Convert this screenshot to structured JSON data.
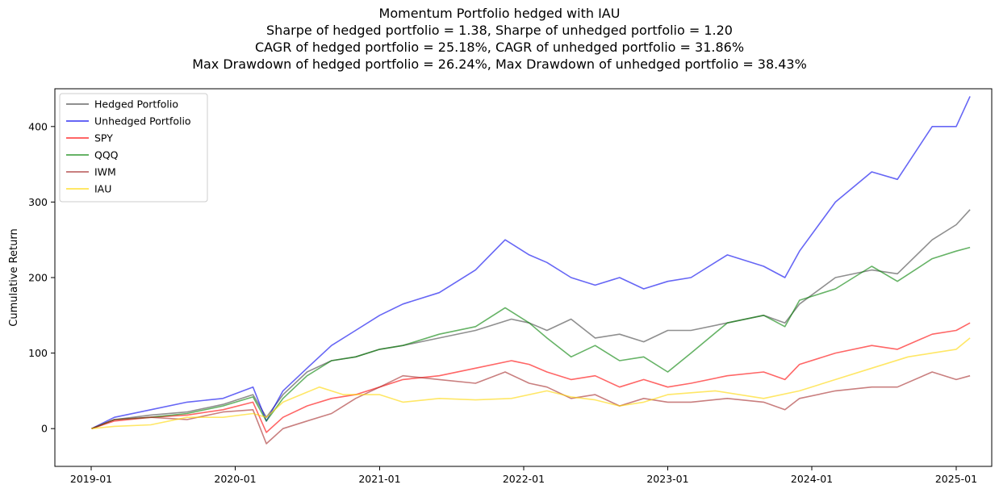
{
  "chart_data": {
    "type": "line",
    "title": "Momentum Portfolio hedged with IAU",
    "subtitle_lines": [
      "Sharpe of hedged portfolio = 1.38, Sharpe of unhedged portfolio = 1.20",
      "CAGR of hedged portfolio = 25.18%, CAGR of unhedged portfolio = 31.86%",
      "Max Drawdown of hedged portfolio = 26.24%, Max Drawdown of unhedged portfolio = 38.43%"
    ],
    "xlabel": "",
    "ylabel": "Cumulative Return",
    "xlim": [
      "2018-10-01",
      "2025-04-01"
    ],
    "ylim": [
      -50,
      450
    ],
    "x_ticks": [
      "2019-01",
      "2020-01",
      "2021-01",
      "2022-01",
      "2023-01",
      "2024-01",
      "2025-01"
    ],
    "y_ticks": [
      0,
      100,
      200,
      300,
      400
    ],
    "grid": false,
    "legend_position": "upper-left",
    "series": [
      {
        "name": "Hedged Portfolio",
        "color": "#444444",
        "points": [
          [
            "2019-01-02",
            0
          ],
          [
            "2019-03-01",
            12
          ],
          [
            "2019-06-01",
            18
          ],
          [
            "2019-09-01",
            22
          ],
          [
            "2019-12-01",
            32
          ],
          [
            "2020-02-15",
            45
          ],
          [
            "2020-03-20",
            15
          ],
          [
            "2020-05-01",
            45
          ],
          [
            "2020-07-01",
            75
          ],
          [
            "2020-09-01",
            90
          ],
          [
            "2020-11-01",
            95
          ],
          [
            "2021-01-01",
            105
          ],
          [
            "2021-03-01",
            110
          ],
          [
            "2021-06-01",
            120
          ],
          [
            "2021-09-01",
            130
          ],
          [
            "2021-12-01",
            145
          ],
          [
            "2022-01-15",
            140
          ],
          [
            "2022-03-01",
            130
          ],
          [
            "2022-05-01",
            145
          ],
          [
            "2022-07-01",
            120
          ],
          [
            "2022-09-01",
            125
          ],
          [
            "2022-11-01",
            115
          ],
          [
            "2023-01-01",
            130
          ],
          [
            "2023-03-01",
            130
          ],
          [
            "2023-06-01",
            140
          ],
          [
            "2023-09-01",
            150
          ],
          [
            "2023-10-25",
            140
          ],
          [
            "2023-12-01",
            165
          ],
          [
            "2024-03-01",
            200
          ],
          [
            "2024-06-01",
            210
          ],
          [
            "2024-08-05",
            205
          ],
          [
            "2024-11-01",
            250
          ],
          [
            "2025-01-01",
            270
          ],
          [
            "2025-02-05",
            290
          ]
        ]
      },
      {
        "name": "Unhedged Portfolio",
        "color": "#0000ee",
        "points": [
          [
            "2019-01-02",
            0
          ],
          [
            "2019-03-01",
            15
          ],
          [
            "2019-06-01",
            25
          ],
          [
            "2019-09-01",
            35
          ],
          [
            "2019-12-01",
            40
          ],
          [
            "2020-02-15",
            55
          ],
          [
            "2020-03-20",
            10
          ],
          [
            "2020-05-01",
            50
          ],
          [
            "2020-07-01",
            80
          ],
          [
            "2020-09-01",
            110
          ],
          [
            "2020-11-01",
            130
          ],
          [
            "2021-01-01",
            150
          ],
          [
            "2021-03-01",
            165
          ],
          [
            "2021-06-01",
            180
          ],
          [
            "2021-09-01",
            210
          ],
          [
            "2021-11-15",
            250
          ],
          [
            "2022-01-15",
            230
          ],
          [
            "2022-03-01",
            220
          ],
          [
            "2022-05-01",
            200
          ],
          [
            "2022-07-01",
            190
          ],
          [
            "2022-09-01",
            200
          ],
          [
            "2022-11-01",
            185
          ],
          [
            "2023-01-01",
            195
          ],
          [
            "2023-03-01",
            200
          ],
          [
            "2023-06-01",
            230
          ],
          [
            "2023-09-01",
            215
          ],
          [
            "2023-10-25",
            200
          ],
          [
            "2023-12-01",
            235
          ],
          [
            "2024-03-01",
            300
          ],
          [
            "2024-06-01",
            340
          ],
          [
            "2024-08-05",
            330
          ],
          [
            "2024-11-01",
            400
          ],
          [
            "2025-01-01",
            400
          ],
          [
            "2025-02-05",
            440
          ]
        ]
      },
      {
        "name": "SPY",
        "color": "#ff0000",
        "points": [
          [
            "2019-01-02",
            0
          ],
          [
            "2019-03-01",
            10
          ],
          [
            "2019-06-01",
            15
          ],
          [
            "2019-09-01",
            18
          ],
          [
            "2019-12-01",
            25
          ],
          [
            "2020-02-15",
            35
          ],
          [
            "2020-03-20",
            -5
          ],
          [
            "2020-05-01",
            15
          ],
          [
            "2020-07-01",
            30
          ],
          [
            "2020-09-01",
            40
          ],
          [
            "2020-11-01",
            45
          ],
          [
            "2021-01-01",
            55
          ],
          [
            "2021-03-01",
            65
          ],
          [
            "2021-06-01",
            70
          ],
          [
            "2021-09-01",
            80
          ],
          [
            "2021-12-01",
            90
          ],
          [
            "2022-01-15",
            85
          ],
          [
            "2022-03-01",
            75
          ],
          [
            "2022-05-01",
            65
          ],
          [
            "2022-07-01",
            70
          ],
          [
            "2022-09-01",
            55
          ],
          [
            "2022-11-01",
            65
          ],
          [
            "2023-01-01",
            55
          ],
          [
            "2023-03-01",
            60
          ],
          [
            "2023-06-01",
            70
          ],
          [
            "2023-09-01",
            75
          ],
          [
            "2023-10-25",
            65
          ],
          [
            "2023-12-01",
            85
          ],
          [
            "2024-03-01",
            100
          ],
          [
            "2024-06-01",
            110
          ],
          [
            "2024-08-05",
            105
          ],
          [
            "2024-11-01",
            125
          ],
          [
            "2025-01-01",
            130
          ],
          [
            "2025-02-05",
            140
          ]
        ]
      },
      {
        "name": "QQQ",
        "color": "#008000",
        "points": [
          [
            "2019-01-02",
            0
          ],
          [
            "2019-03-01",
            12
          ],
          [
            "2019-06-01",
            15
          ],
          [
            "2019-09-01",
            20
          ],
          [
            "2019-12-01",
            30
          ],
          [
            "2020-02-15",
            42
          ],
          [
            "2020-03-20",
            10
          ],
          [
            "2020-05-01",
            40
          ],
          [
            "2020-07-01",
            70
          ],
          [
            "2020-09-01",
            90
          ],
          [
            "2020-11-01",
            95
          ],
          [
            "2021-01-01",
            105
          ],
          [
            "2021-03-01",
            110
          ],
          [
            "2021-06-01",
            125
          ],
          [
            "2021-09-01",
            135
          ],
          [
            "2021-11-15",
            160
          ],
          [
            "2022-01-15",
            140
          ],
          [
            "2022-03-01",
            120
          ],
          [
            "2022-05-01",
            95
          ],
          [
            "2022-07-01",
            110
          ],
          [
            "2022-09-01",
            90
          ],
          [
            "2022-11-01",
            95
          ],
          [
            "2023-01-01",
            75
          ],
          [
            "2023-03-01",
            100
          ],
          [
            "2023-06-01",
            140
          ],
          [
            "2023-09-01",
            150
          ],
          [
            "2023-10-25",
            135
          ],
          [
            "2023-12-01",
            170
          ],
          [
            "2024-03-01",
            185
          ],
          [
            "2024-06-01",
            215
          ],
          [
            "2024-08-05",
            195
          ],
          [
            "2024-11-01",
            225
          ],
          [
            "2025-01-01",
            235
          ],
          [
            "2025-02-05",
            240
          ]
        ]
      },
      {
        "name": "IWM",
        "color": "#a52a2a",
        "points": [
          [
            "2019-01-02",
            0
          ],
          [
            "2019-03-01",
            12
          ],
          [
            "2019-06-01",
            15
          ],
          [
            "2019-09-01",
            12
          ],
          [
            "2019-12-01",
            22
          ],
          [
            "2020-02-15",
            25
          ],
          [
            "2020-03-20",
            -20
          ],
          [
            "2020-05-01",
            0
          ],
          [
            "2020-07-01",
            10
          ],
          [
            "2020-09-01",
            20
          ],
          [
            "2020-11-01",
            40
          ],
          [
            "2021-01-01",
            55
          ],
          [
            "2021-03-01",
            70
          ],
          [
            "2021-06-01",
            65
          ],
          [
            "2021-09-01",
            60
          ],
          [
            "2021-11-15",
            75
          ],
          [
            "2022-01-15",
            60
          ],
          [
            "2022-03-01",
            55
          ],
          [
            "2022-05-01",
            40
          ],
          [
            "2022-07-01",
            45
          ],
          [
            "2022-09-01",
            30
          ],
          [
            "2022-11-01",
            40
          ],
          [
            "2023-01-01",
            35
          ],
          [
            "2023-03-01",
            35
          ],
          [
            "2023-06-01",
            40
          ],
          [
            "2023-09-01",
            35
          ],
          [
            "2023-10-25",
            25
          ],
          [
            "2023-12-01",
            40
          ],
          [
            "2024-03-01",
            50
          ],
          [
            "2024-06-01",
            55
          ],
          [
            "2024-08-05",
            55
          ],
          [
            "2024-11-01",
            75
          ],
          [
            "2025-01-01",
            65
          ],
          [
            "2025-02-05",
            70
          ]
        ]
      },
      {
        "name": "IAU",
        "color": "#ffd700",
        "points": [
          [
            "2019-01-02",
            0
          ],
          [
            "2019-03-01",
            3
          ],
          [
            "2019-06-01",
            5
          ],
          [
            "2019-09-01",
            15
          ],
          [
            "2019-12-01",
            15
          ],
          [
            "2020-02-15",
            20
          ],
          [
            "2020-03-20",
            15
          ],
          [
            "2020-05-01",
            35
          ],
          [
            "2020-08-01",
            55
          ],
          [
            "2020-10-01",
            45
          ],
          [
            "2021-01-01",
            45
          ],
          [
            "2021-03-01",
            35
          ],
          [
            "2021-06-01",
            40
          ],
          [
            "2021-09-01",
            38
          ],
          [
            "2021-12-01",
            40
          ],
          [
            "2022-03-01",
            50
          ],
          [
            "2022-05-01",
            42
          ],
          [
            "2022-07-01",
            38
          ],
          [
            "2022-09-01",
            30
          ],
          [
            "2022-11-01",
            35
          ],
          [
            "2023-01-01",
            45
          ],
          [
            "2023-05-01",
            50
          ],
          [
            "2023-09-01",
            40
          ],
          [
            "2023-12-01",
            50
          ],
          [
            "2024-03-01",
            65
          ],
          [
            "2024-06-01",
            80
          ],
          [
            "2024-09-01",
            95
          ],
          [
            "2024-11-01",
            100
          ],
          [
            "2025-01-01",
            105
          ],
          [
            "2025-02-05",
            120
          ]
        ]
      }
    ]
  }
}
